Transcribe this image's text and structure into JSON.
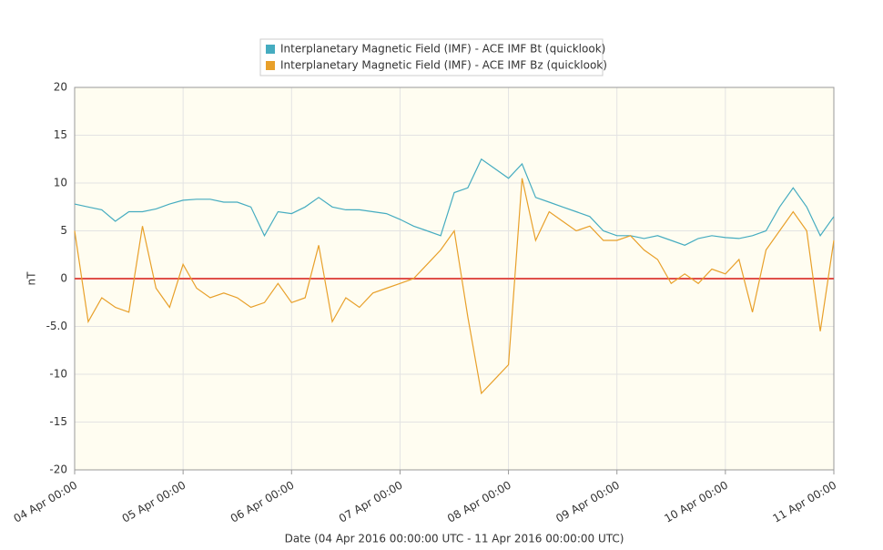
{
  "chart_data": {
    "type": "line",
    "legend_names_prefix_note": null,
    "x_label": "Date (04 Apr 2016 00:00:00 UTC - 11 Apr 2016 00:00:00 UTC)",
    "y_label": "nT",
    "x": [
      0,
      3,
      6,
      9,
      12,
      15,
      18,
      21,
      24,
      27,
      30,
      33,
      36,
      39,
      42,
      45,
      48,
      51,
      54,
      57,
      60,
      63,
      66,
      69,
      72,
      75,
      78,
      81,
      84,
      87,
      90,
      93,
      96,
      99,
      102,
      105,
      108,
      111,
      114,
      117,
      120,
      123,
      126,
      129,
      132,
      135,
      138,
      141,
      144,
      147,
      150,
      153,
      156,
      159,
      162,
      165,
      168
    ],
    "series": [
      {
        "name": "Interplanetary Magnetic Field (IMF) - ACE IMF Bt (quicklook)",
        "color": "#45acc0",
        "values": [
          7.8,
          7.5,
          7.2,
          6.0,
          7.0,
          7.0,
          7.3,
          7.8,
          8.2,
          8.3,
          8.3,
          8.0,
          8.0,
          7.5,
          4.5,
          7.0,
          6.8,
          7.5,
          8.5,
          7.5,
          7.2,
          7.2,
          7.0,
          6.8,
          6.2,
          5.5,
          5.0,
          4.5,
          9.0,
          9.5,
          12.5,
          11.5,
          10.5,
          12.0,
          8.5,
          8.0,
          7.5,
          7.0,
          6.5,
          5.0,
          4.5,
          4.5,
          4.2,
          4.5,
          4.0,
          3.5,
          4.2,
          4.5,
          4.3,
          4.2,
          4.5,
          5.0,
          7.5,
          9.5,
          7.5,
          4.5,
          6.5
        ]
      },
      {
        "name": "Interplanetary Magnetic Field (IMF) - ACE IMF Bz (quicklook)",
        "color": "#e8a02a",
        "values": [
          5.0,
          -4.5,
          -2.0,
          -3.0,
          -3.5,
          5.5,
          -1.0,
          -3.0,
          1.5,
          -1.0,
          -2.0,
          -1.5,
          -2.0,
          -3.0,
          -2.5,
          -0.5,
          -2.5,
          -2.0,
          3.5,
          -4.5,
          -2.0,
          -3.0,
          -1.5,
          -1.0,
          -0.5,
          0,
          1.5,
          3.0,
          5.0,
          -4.0,
          -12.0,
          -10.5,
          -9.0,
          10.5,
          4.0,
          7.0,
          6.0,
          5.0,
          5.5,
          4.0,
          4.0,
          4.5,
          3.0,
          2.0,
          -0.5,
          0.5,
          -0.5,
          1.0,
          0.5,
          2.0,
          -3.5,
          3.0,
          5.0,
          7.0,
          5.0,
          -5.5,
          4.0
        ]
      }
    ],
    "xlim": [
      0,
      168
    ],
    "xticks": [
      {
        "value": 0,
        "label": "04 Apr 00:00"
      },
      {
        "value": 24,
        "label": "05 Apr 00:00"
      },
      {
        "value": 48,
        "label": "06 Apr 00:00"
      },
      {
        "value": 72,
        "label": "07 Apr 00:00"
      },
      {
        "value": 96,
        "label": "08 Apr 00:00"
      },
      {
        "value": 120,
        "label": "09 Apr 00:00"
      },
      {
        "value": 144,
        "label": "10 Apr 00:00"
      },
      {
        "value": 168,
        "label": "11 Apr 00:00"
      }
    ],
    "ylim": [
      -20,
      20
    ],
    "yticks": [
      20,
      15,
      10,
      5,
      0,
      {
        "value": -5,
        "label": "-5.0"
      },
      -10,
      -15,
      -20
    ],
    "grid": true,
    "legend": "top",
    "reference_lines": [
      {
        "value": 0,
        "color": "#e0504a"
      }
    ]
  }
}
